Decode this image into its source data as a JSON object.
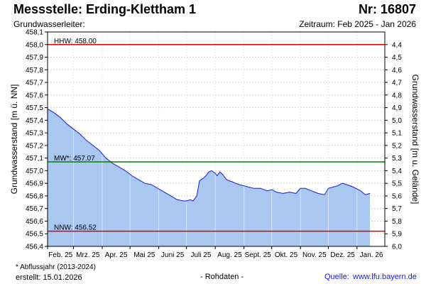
{
  "header": {
    "title": "Messstelle: Erding-Klettham 1",
    "station_number": "Nr: 16807",
    "aquifer_label": "Grundwasserleiter:",
    "period": "Zeitraum: Feb 2025 - Jan 2026"
  },
  "footer": {
    "footnote": "* Abflussjahr (2013-2024)",
    "created": "erstellt:  15.01.2026",
    "raw_data_note": "- Rohdaten -",
    "source_label": "Quelle:",
    "source_url": "www.lfu.bayern.de"
  },
  "chart_data": {
    "type": "area",
    "ylabel": "Grundwasserstand [m ü. NN]",
    "ylabel_right": "Grundwasserstand [m u. Gelände]",
    "ylim": [
      456.4,
      458.1
    ],
    "ylim_right": [
      6.0,
      4.3
    ],
    "yticks": [
      "458,1",
      "458,0",
      "457,9",
      "457,8",
      "457,7",
      "457,6",
      "457,5",
      "457,4",
      "457,3",
      "457,2",
      "457,1",
      "457,0",
      "456,9",
      "456,8",
      "456,7",
      "456,6",
      "456,5",
      "456,4"
    ],
    "yticks_right": [
      "4,4",
      "4,5",
      "4,6",
      "4,7",
      "4,8",
      "4,9",
      "5,0",
      "5,1",
      "5,2",
      "5,3",
      "5,4",
      "5,5",
      "5,6",
      "5,7",
      "5,8",
      "5,9",
      "6,0"
    ],
    "xlim": [
      "2025-02-01",
      "2026-01-31"
    ],
    "months": [
      "Feb. 25",
      "Mrz. 25",
      "Apr. 25",
      "Mai 25",
      "Juni 25",
      "Juli 25",
      "Aug. 25",
      "Sept. 25",
      "Okt. 25",
      "Nov. 25",
      "Dez. 25",
      "Jan. 26"
    ],
    "grid": true,
    "fill_color": "#a9c7ef",
    "line_color": "#1c1cd2",
    "reference_lines": [
      {
        "label": "HHW: 458.00",
        "value": 458.0,
        "color": "#e00000"
      },
      {
        "label": "MW*: 457.07",
        "value": 457.07,
        "color": "#008000"
      },
      {
        "label": "NNW: 456.52",
        "value": 456.52,
        "color": "#e00000"
      }
    ],
    "x": [
      "2025-02-01",
      "2025-02-08",
      "2025-02-15",
      "2025-02-22",
      "2025-03-01",
      "2025-03-08",
      "2025-03-15",
      "2025-03-22",
      "2025-03-29",
      "2025-04-05",
      "2025-04-12",
      "2025-04-19",
      "2025-04-26",
      "2025-05-03",
      "2025-05-10",
      "2025-05-17",
      "2025-05-24",
      "2025-05-31",
      "2025-06-07",
      "2025-06-14",
      "2025-06-21",
      "2025-06-28",
      "2025-07-01",
      "2025-07-05",
      "2025-07-08",
      "2025-07-12",
      "2025-07-15",
      "2025-07-19",
      "2025-07-22",
      "2025-07-25",
      "2025-07-28",
      "2025-08-01",
      "2025-08-03",
      "2025-08-06",
      "2025-08-09",
      "2025-08-13",
      "2025-08-16",
      "2025-08-20",
      "2025-08-23",
      "2025-08-27",
      "2025-09-01",
      "2025-09-06",
      "2025-09-12",
      "2025-09-19",
      "2025-09-26",
      "2025-10-01",
      "2025-10-06",
      "2025-10-13",
      "2025-10-20",
      "2025-10-27",
      "2025-11-01",
      "2025-11-06",
      "2025-11-13",
      "2025-11-20",
      "2025-11-27",
      "2025-12-01",
      "2025-12-06",
      "2025-12-11",
      "2025-12-16",
      "2025-12-21",
      "2025-12-28",
      "2026-01-05",
      "2026-01-10",
      "2026-01-15"
    ],
    "values": [
      457.49,
      457.46,
      457.42,
      457.37,
      457.33,
      457.29,
      457.24,
      457.2,
      457.16,
      457.1,
      457.06,
      457.03,
      457.0,
      456.96,
      456.93,
      456.9,
      456.89,
      456.86,
      456.83,
      456.8,
      456.77,
      456.76,
      456.76,
      456.77,
      456.76,
      456.8,
      456.92,
      456.94,
      456.96,
      456.99,
      457.0,
      456.98,
      456.96,
      456.99,
      456.97,
      456.93,
      456.92,
      456.91,
      456.9,
      456.89,
      456.88,
      456.87,
      456.86,
      456.86,
      456.84,
      456.85,
      456.83,
      456.82,
      456.83,
      456.82,
      456.86,
      456.86,
      456.84,
      456.82,
      456.81,
      456.86,
      456.87,
      456.88,
      456.9,
      456.89,
      456.87,
      456.84,
      456.81,
      456.82
    ]
  }
}
